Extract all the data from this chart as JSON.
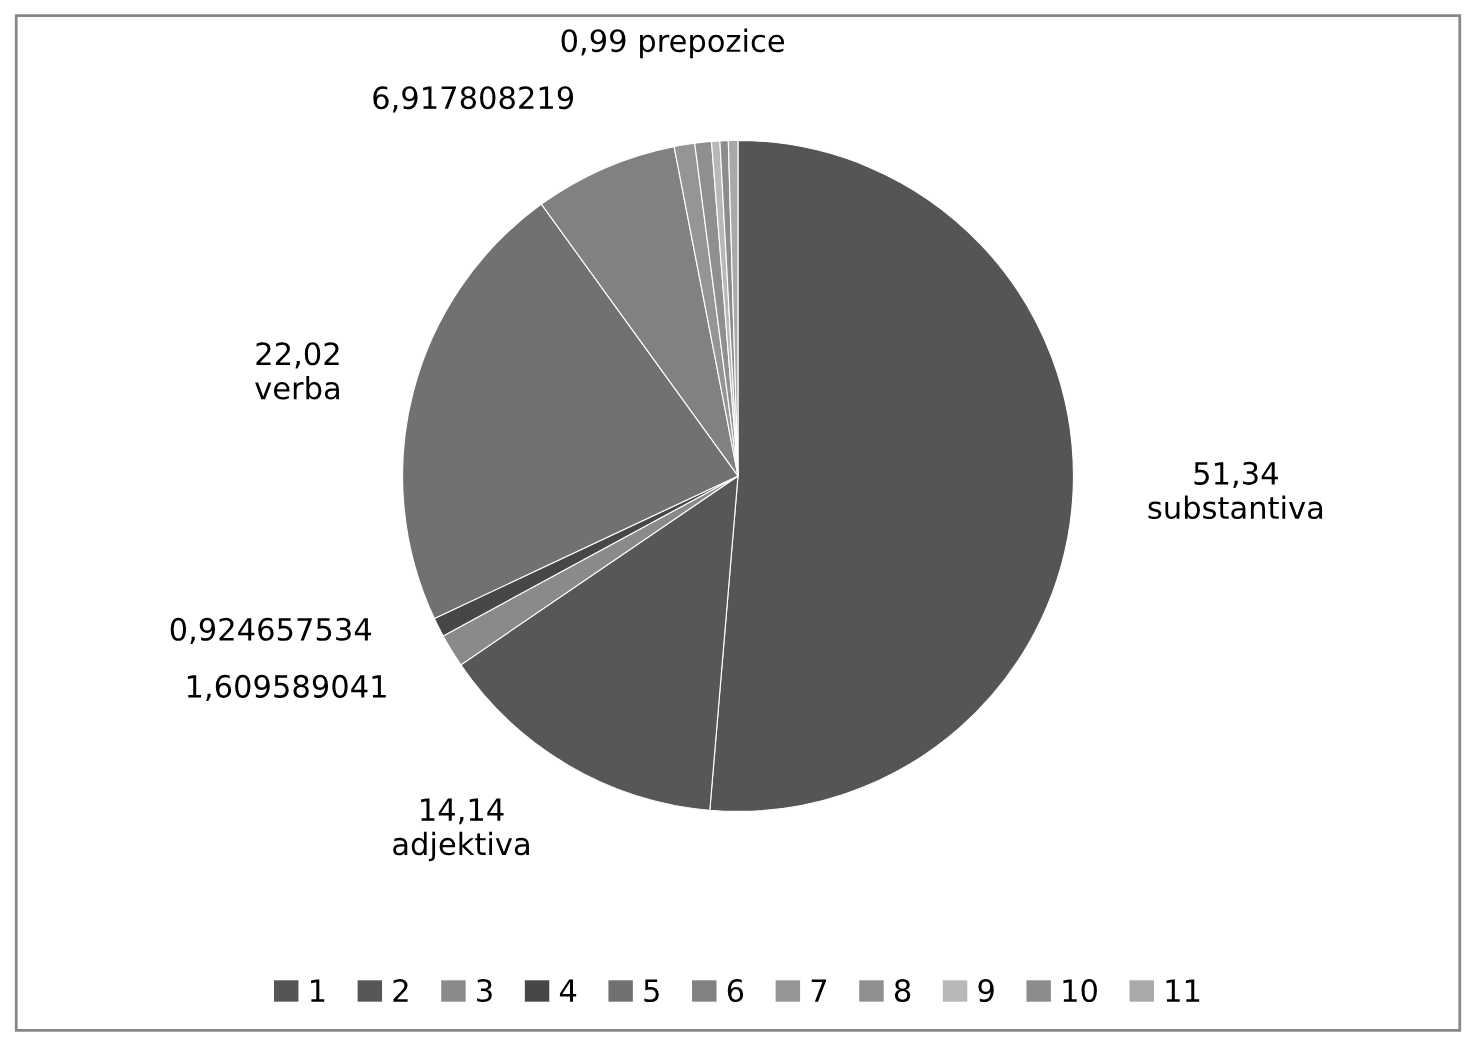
{
  "chart_data": {
    "type": "pie",
    "categories": [
      "1",
      "2",
      "3",
      "4",
      "5",
      "6",
      "7",
      "8",
      "9",
      "10",
      "11"
    ],
    "values": [
      51.34,
      14.14,
      1.609589041,
      0.924657534,
      22.02,
      6.917808219,
      0.99,
      0.8,
      0.4,
      0.4,
      0.46
    ],
    "colors": [
      "#555555",
      "#575757",
      "#8a8a8a",
      "#474747",
      "#717171",
      "#818181",
      "#959595",
      "#8f8f8f",
      "#b8b8b8",
      "#8c8c8c",
      "#a9a9a9"
    ],
    "value_labels": [
      "51,34\nsubstantiva",
      "14,14\nadjektiva",
      "1,609589041",
      "0,924657534",
      "22,02\nverba",
      "6,917808219",
      "0,99 prepozice",
      null,
      null,
      null,
      null
    ],
    "legend": "bottom"
  }
}
